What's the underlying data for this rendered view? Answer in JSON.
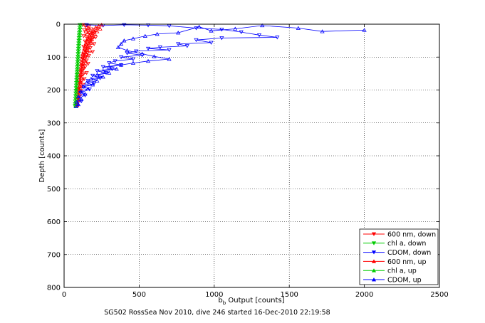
{
  "chart_data": {
    "type": "scatter",
    "title": "",
    "xlabel": "b_b Output [counts]",
    "xlabel_main": "b",
    "xlabel_sub": "b",
    "xlabel_rest": " Output [counts]",
    "ylabel": "Depth [counts]",
    "xlim": [
      0,
      2500
    ],
    "ylim": [
      0,
      800
    ],
    "y_reversed": true,
    "grid": true,
    "legend_position": "bottom-right",
    "x_ticks": [
      "0",
      "500",
      "1000",
      "1500",
      "2000",
      "2500"
    ],
    "y_ticks": [
      "0",
      "100",
      "200",
      "300",
      "400",
      "500",
      "600",
      "700",
      "800"
    ],
    "caption": "SG502 RossSea Nov 2010, dive 246 started 16-Dec-2010 22:19:58",
    "series": [
      {
        "name": "600 nm, down",
        "color": "#ff0000",
        "marker": "triangle-down",
        "points": [
          [
            125,
            2
          ],
          [
            140,
            5
          ],
          [
            165,
            8
          ],
          [
            150,
            12
          ],
          [
            180,
            15
          ],
          [
            135,
            18
          ],
          [
            160,
            22
          ],
          [
            200,
            25
          ],
          [
            145,
            28
          ],
          [
            175,
            32
          ],
          [
            130,
            36
          ],
          [
            210,
            40
          ],
          [
            155,
            44
          ],
          [
            185,
            48
          ],
          [
            140,
            52
          ],
          [
            170,
            56
          ],
          [
            200,
            60
          ],
          [
            150,
            64
          ],
          [
            130,
            68
          ],
          [
            175,
            72
          ],
          [
            160,
            76
          ],
          [
            140,
            80
          ],
          [
            190,
            84
          ],
          [
            155,
            88
          ],
          [
            130,
            92
          ],
          [
            165,
            96
          ],
          [
            145,
            100
          ],
          [
            125,
            105
          ],
          [
            150,
            110
          ],
          [
            135,
            115
          ],
          [
            160,
            120
          ],
          [
            120,
            125
          ],
          [
            140,
            130
          ],
          [
            130,
            136
          ],
          [
            115,
            142
          ],
          [
            150,
            148
          ],
          [
            125,
            154
          ],
          [
            110,
            160
          ],
          [
            135,
            166
          ],
          [
            120,
            172
          ],
          [
            105,
            178
          ],
          [
            125,
            184
          ],
          [
            115,
            190
          ],
          [
            100,
            196
          ],
          [
            110,
            202
          ],
          [
            95,
            210
          ],
          [
            105,
            218
          ],
          [
            90,
            226
          ],
          [
            95,
            234
          ],
          [
            85,
            242
          ],
          [
            88,
            248
          ]
        ]
      },
      {
        "name": "chl a, down",
        "color": "#00cc00",
        "marker": "triangle-down",
        "points": [
          [
            105,
            2
          ],
          [
            103,
            10
          ],
          [
            102,
            18
          ],
          [
            100,
            26
          ],
          [
            99,
            34
          ],
          [
            98,
            42
          ],
          [
            97,
            50
          ],
          [
            96,
            58
          ],
          [
            95,
            66
          ],
          [
            94,
            74
          ],
          [
            93,
            82
          ],
          [
            92,
            90
          ],
          [
            91,
            98
          ],
          [
            90,
            106
          ],
          [
            89,
            114
          ],
          [
            88,
            122
          ],
          [
            87,
            130
          ],
          [
            86,
            138
          ],
          [
            85,
            146
          ],
          [
            84,
            154
          ],
          [
            83,
            162
          ],
          [
            82,
            170
          ],
          [
            81,
            178
          ],
          [
            80,
            186
          ],
          [
            79,
            194
          ],
          [
            78,
            202
          ],
          [
            77,
            210
          ],
          [
            76,
            218
          ],
          [
            75,
            226
          ],
          [
            74,
            234
          ],
          [
            73,
            242
          ],
          [
            72,
            248
          ]
        ]
      },
      {
        "name": "CDOM, down",
        "color": "#0000ff",
        "marker": "triangle-down",
        "points": [
          [
            150,
            2
          ],
          [
            260,
            4
          ],
          [
            400,
            2
          ],
          [
            560,
            3
          ],
          [
            700,
            5
          ],
          [
            880,
            12
          ],
          [
            1050,
            16
          ],
          [
            1180,
            24
          ],
          [
            1300,
            33
          ],
          [
            1420,
            40
          ],
          [
            1050,
            42
          ],
          [
            880,
            48
          ],
          [
            980,
            56
          ],
          [
            760,
            60
          ],
          [
            820,
            66
          ],
          [
            640,
            70
          ],
          [
            560,
            74
          ],
          [
            700,
            78
          ],
          [
            480,
            82
          ],
          [
            420,
            88
          ],
          [
            520,
            94
          ],
          [
            380,
            100
          ],
          [
            460,
            106
          ],
          [
            340,
            112
          ],
          [
            300,
            118
          ],
          [
            380,
            124
          ],
          [
            260,
            130
          ],
          [
            320,
            136
          ],
          [
            220,
            142
          ],
          [
            280,
            148
          ],
          [
            190,
            156
          ],
          [
            240,
            164
          ],
          [
            160,
            172
          ],
          [
            200,
            180
          ],
          [
            130,
            190
          ],
          [
            170,
            198
          ],
          [
            110,
            208
          ],
          [
            140,
            216
          ],
          [
            95,
            226
          ],
          [
            115,
            234
          ],
          [
            80,
            242
          ],
          [
            90,
            248
          ]
        ]
      },
      {
        "name": "600 nm, up",
        "color": "#ff0000",
        "marker": "triangle-up",
        "points": [
          [
            250,
            2
          ],
          [
            230,
            6
          ],
          [
            210,
            10
          ],
          [
            240,
            14
          ],
          [
            195,
            18
          ],
          [
            220,
            22
          ],
          [
            180,
            26
          ],
          [
            205,
            30
          ],
          [
            170,
            34
          ],
          [
            190,
            38
          ],
          [
            160,
            42
          ],
          [
            185,
            46
          ],
          [
            150,
            50
          ],
          [
            175,
            54
          ],
          [
            145,
            58
          ],
          [
            165,
            62
          ],
          [
            140,
            66
          ],
          [
            160,
            70
          ],
          [
            135,
            74
          ],
          [
            150,
            78
          ],
          [
            130,
            82
          ],
          [
            145,
            86
          ],
          [
            125,
            90
          ],
          [
            140,
            94
          ],
          [
            120,
            98
          ],
          [
            135,
            102
          ],
          [
            118,
            106
          ],
          [
            130,
            110
          ],
          [
            115,
            114
          ],
          [
            128,
            118
          ],
          [
            112,
            122
          ],
          [
            125,
            126
          ],
          [
            110,
            130
          ],
          [
            120,
            134
          ],
          [
            108,
            138
          ],
          [
            118,
            142
          ],
          [
            105,
            146
          ],
          [
            115,
            150
          ],
          [
            102,
            156
          ],
          [
            112,
            162
          ],
          [
            100,
            168
          ],
          [
            108,
            174
          ],
          [
            98,
            180
          ],
          [
            104,
            186
          ],
          [
            95,
            192
          ],
          [
            100,
            198
          ],
          [
            92,
            206
          ],
          [
            96,
            214
          ],
          [
            90,
            222
          ],
          [
            92,
            230
          ],
          [
            88,
            238
          ],
          [
            86,
            246
          ]
        ]
      },
      {
        "name": "chl a, up",
        "color": "#00cc00",
        "marker": "triangle-up",
        "points": [
          [
            110,
            2
          ],
          [
            108,
            10
          ],
          [
            106,
            18
          ],
          [
            105,
            26
          ],
          [
            104,
            34
          ],
          [
            103,
            42
          ],
          [
            101,
            50
          ],
          [
            100,
            58
          ],
          [
            99,
            66
          ],
          [
            98,
            74
          ],
          [
            97,
            82
          ],
          [
            96,
            90
          ],
          [
            95,
            98
          ],
          [
            94,
            106
          ],
          [
            93,
            114
          ],
          [
            92,
            122
          ],
          [
            91,
            130
          ],
          [
            90,
            138
          ],
          [
            89,
            146
          ],
          [
            88,
            154
          ],
          [
            87,
            162
          ],
          [
            86,
            170
          ],
          [
            85,
            178
          ],
          [
            84,
            186
          ],
          [
            83,
            194
          ],
          [
            82,
            202
          ],
          [
            81,
            210
          ],
          [
            80,
            218
          ],
          [
            79,
            226
          ],
          [
            78,
            234
          ],
          [
            77,
            242
          ],
          [
            76,
            248
          ]
        ]
      },
      {
        "name": "CDOM, up",
        "color": "#0000ff",
        "marker": "triangle-up",
        "points": [
          [
            2000,
            18
          ],
          [
            1720,
            22
          ],
          [
            1560,
            12
          ],
          [
            1320,
            4
          ],
          [
            1140,
            14
          ],
          [
            980,
            20
          ],
          [
            900,
            8
          ],
          [
            760,
            26
          ],
          [
            620,
            30
          ],
          [
            540,
            36
          ],
          [
            460,
            44
          ],
          [
            400,
            50
          ],
          [
            380,
            60
          ],
          [
            360,
            70
          ],
          [
            420,
            80
          ],
          [
            520,
            90
          ],
          [
            600,
            98
          ],
          [
            700,
            106
          ],
          [
            560,
            112
          ],
          [
            460,
            118
          ],
          [
            380,
            124
          ],
          [
            300,
            130
          ],
          [
            350,
            136
          ],
          [
            260,
            142
          ],
          [
            300,
            148
          ],
          [
            220,
            154
          ],
          [
            260,
            160
          ],
          [
            180,
            166
          ],
          [
            220,
            172
          ],
          [
            150,
            178
          ],
          [
            190,
            184
          ],
          [
            130,
            190
          ],
          [
            160,
            196
          ],
          [
            110,
            204
          ],
          [
            140,
            212
          ],
          [
            95,
            220
          ],
          [
            115,
            228
          ],
          [
            85,
            236
          ],
          [
            95,
            244
          ],
          [
            80,
            250
          ]
        ]
      }
    ]
  }
}
